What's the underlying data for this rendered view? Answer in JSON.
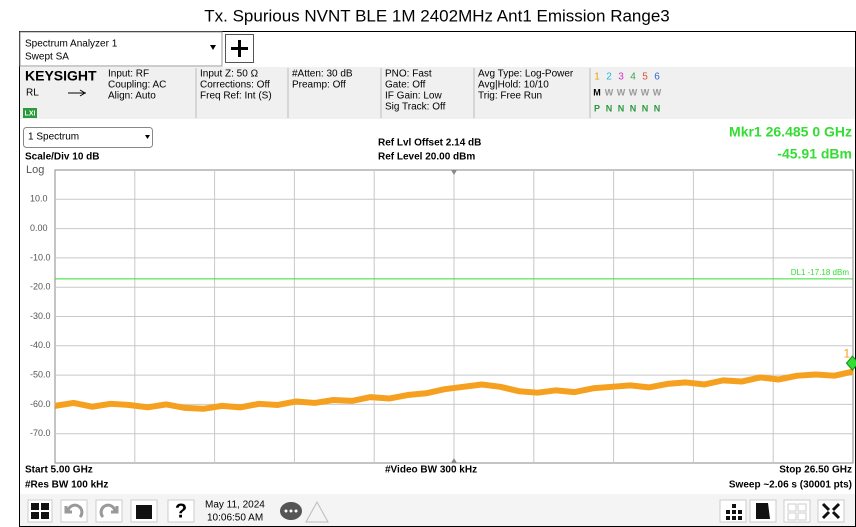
{
  "ui": {
    "title": "Tx. Spurious NVNT BLE 1M 2402MHz Ant1 Emission Range3",
    "window": [
      "Spectrum Analyzer 1",
      "Swept SA"
    ],
    "brand": "KEYSIGHT",
    "rl": "RL",
    "lxi": "LXI",
    "settings": [
      [
        "Input: RF",
        "Coupling: AC",
        "Align: Auto"
      ],
      [
        "Input Z: 50 Ω",
        "Corrections: Off",
        "Freq Ref: Int (S)"
      ],
      [
        "#Atten: 30 dB",
        "Preamp: Off"
      ],
      [
        "PNO: Fast",
        "Gate: Off",
        "IF Gain: Low",
        "Sig Track: Off"
      ],
      [
        "Avg Type: Log-Power",
        "Avg|Hold: 10/10",
        "Trig: Free Run"
      ]
    ],
    "traces": [
      {
        "n": "1",
        "m": "M",
        "p": "P",
        "color": "#e8a200"
      },
      {
        "n": "2",
        "m": "W",
        "p": "N",
        "color": "#29b6d6"
      },
      {
        "n": "3",
        "m": "W",
        "p": "N",
        "color": "#d633c8"
      },
      {
        "n": "4",
        "m": "W",
        "p": "N",
        "color": "#3aa64a"
      },
      {
        "n": "5",
        "m": "W",
        "p": "N",
        "color": "#e0503a"
      },
      {
        "n": "6",
        "m": "W",
        "p": "N",
        "color": "#3366dd"
      }
    ],
    "window_select": "1 Spectrum",
    "scale": "Scale/Div 10 dB",
    "log": "Log",
    "ref_offset": "Ref Lvl Offset 2.14 dB",
    "ref_level": "Ref Level 20.00 dBm",
    "marker_freq": "Mkr1  26.485 0 GHz",
    "marker_level": "-45.91 dBm",
    "start": "Start 5.00 GHz",
    "rbw": "#Res BW 100 kHz",
    "vbw": "#Video BW 300 kHz",
    "stop": "Stop 26.50 GHz",
    "sweep": "Sweep ~2.06 s (30001 pts)",
    "date": "May 11, 2024",
    "time": "10:06:50 AM"
  },
  "chart_data": {
    "type": "line",
    "xlim": [
      5,
      26.5
    ],
    "ylim": [
      -80,
      20
    ],
    "yticks": [
      {
        "value": 10,
        "label": "10.0"
      },
      {
        "value": 0,
        "label": "0.00"
      },
      {
        "value": -10,
        "label": "-10.0"
      },
      {
        "value": -20,
        "label": "-20.0"
      },
      {
        "value": -30,
        "label": "-30.0"
      },
      {
        "value": -40,
        "label": "-40.0"
      },
      {
        "value": -50,
        "label": "-50.0"
      },
      {
        "value": -60,
        "label": "-60.0"
      },
      {
        "value": -70,
        "label": "-70.0"
      }
    ],
    "xgrid": [
      7.15,
      9.3,
      11.45,
      13.6,
      15.75,
      17.9,
      20.05,
      22.2,
      24.35
    ],
    "grid": true,
    "series": [
      {
        "name": "Trace 1",
        "color": "#f5a01e",
        "x": [
          5.0,
          5.5,
          6.0,
          6.5,
          7.0,
          7.5,
          8.0,
          8.5,
          9.0,
          9.5,
          10.0,
          10.5,
          11.0,
          11.5,
          12.0,
          12.5,
          13.0,
          13.5,
          14.0,
          14.5,
          15.0,
          15.5,
          16.0,
          16.5,
          17.0,
          17.5,
          18.0,
          18.5,
          19.0,
          19.5,
          20.0,
          20.5,
          21.0,
          21.5,
          22.0,
          22.5,
          23.0,
          23.5,
          24.0,
          24.5,
          25.0,
          25.5,
          26.0,
          26.5
        ],
        "values": [
          -60.5,
          -59.5,
          -60.8,
          -59.8,
          -60.2,
          -61.0,
          -60.0,
          -61.2,
          -61.5,
          -60.5,
          -61.0,
          -59.8,
          -60.2,
          -59.0,
          -59.5,
          -58.5,
          -58.8,
          -57.5,
          -58.0,
          -56.8,
          -56.2,
          -54.8,
          -54.0,
          -53.2,
          -54.0,
          -55.5,
          -56.0,
          -55.2,
          -55.8,
          -54.5,
          -54.0,
          -53.5,
          -54.2,
          -53.0,
          -52.5,
          -53.2,
          -51.8,
          -52.2,
          -50.8,
          -51.5,
          -50.2,
          -49.8,
          -50.2,
          -48.8
        ]
      }
    ],
    "display_line": {
      "value": -17.18,
      "label": "DL1 -17.18 dBm",
      "color": "#33dd33"
    },
    "marker": {
      "x": 26.485,
      "y": -45.91,
      "label": "1",
      "color": "#33dd33"
    }
  }
}
